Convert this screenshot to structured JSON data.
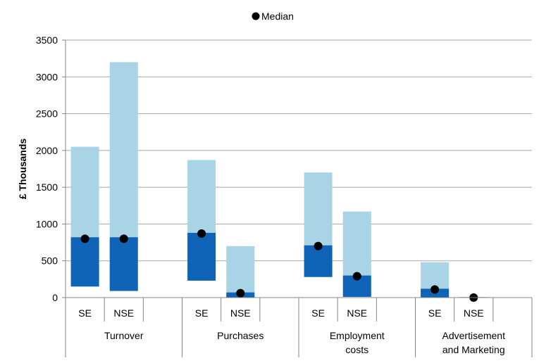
{
  "chart_data": {
    "type": "bar",
    "title": "",
    "xlabel": "",
    "ylabel": "£ Thousands",
    "ylim": [
      0,
      3500
    ],
    "yticks": [
      0,
      500,
      1000,
      1500,
      2000,
      2500,
      3000,
      3500
    ],
    "grid": true,
    "legend": {
      "position": "top-center",
      "entries": [
        "Median"
      ]
    },
    "colors": {
      "outer_range": "#a9d4e6",
      "inner_range": "#0f64b7",
      "median": "#000000",
      "grid": "#a6a6a6",
      "axis": "#868686"
    },
    "categories": [
      "Turnover",
      "Purchases",
      "Employment costs",
      "Advertisement and Marketing"
    ],
    "category_labels": [
      [
        "Turnover"
      ],
      [
        "Purchases"
      ],
      [
        "Employment",
        "costs"
      ],
      [
        "Advertisement",
        "and Marketing"
      ]
    ],
    "subcategories": [
      "SE",
      "NSE"
    ],
    "series": [
      {
        "name": "Turnover",
        "bars": [
          {
            "label": "SE",
            "low": 150,
            "q1": 150,
            "q3": 820,
            "high": 2050,
            "median": 800
          },
          {
            "label": "NSE",
            "low": 90,
            "q1": 90,
            "q3": 820,
            "high": 3200,
            "median": 800
          }
        ]
      },
      {
        "name": "Purchases",
        "bars": [
          {
            "label": "SE",
            "low": 230,
            "q1": 230,
            "q3": 880,
            "high": 1870,
            "median": 870
          },
          {
            "label": "NSE",
            "low": 0,
            "q1": 0,
            "q3": 70,
            "high": 700,
            "median": 60
          }
        ]
      },
      {
        "name": "Employment costs",
        "bars": [
          {
            "label": "SE",
            "low": 280,
            "q1": 280,
            "q3": 710,
            "high": 1700,
            "median": 700
          },
          {
            "label": "NSE",
            "low": 10,
            "q1": 10,
            "q3": 300,
            "high": 1170,
            "median": 290
          }
        ]
      },
      {
        "name": "Advertisement and Marketing",
        "bars": [
          {
            "label": "SE",
            "low": 0,
            "q1": 0,
            "q3": 120,
            "high": 480,
            "median": 110
          },
          {
            "label": "NSE",
            "low": 0,
            "q1": 0,
            "q3": 5,
            "high": 10,
            "median": 0
          }
        ]
      }
    ]
  }
}
